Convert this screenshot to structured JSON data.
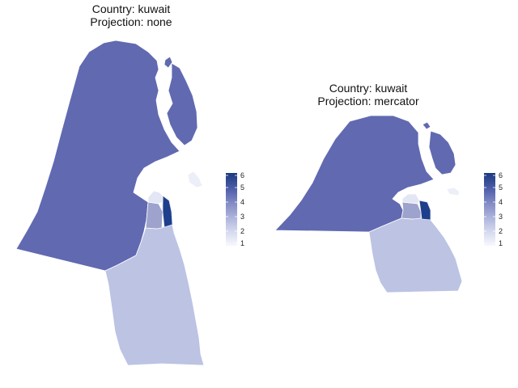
{
  "panels": [
    {
      "title_line1": "Country: kuwait",
      "title_line2": "Projection: none"
    },
    {
      "title_line1": "Country: kuwait",
      "title_line2": "Projection: mercator"
    }
  ],
  "legend": {
    "ticks": [
      "6",
      "5",
      "4",
      "3",
      "2",
      "1"
    ],
    "range": [
      1,
      6
    ],
    "low_color": "#f7f8fd",
    "high_color": "#1b3a7e"
  },
  "colors": {
    "main_region": "#6169b1",
    "south_region": "#bcc3e3",
    "small_mid": "#9da3cc",
    "small_light": "#e3e6f4",
    "small_dark": "#1e3f8c",
    "island_light": "#eceef8"
  }
}
